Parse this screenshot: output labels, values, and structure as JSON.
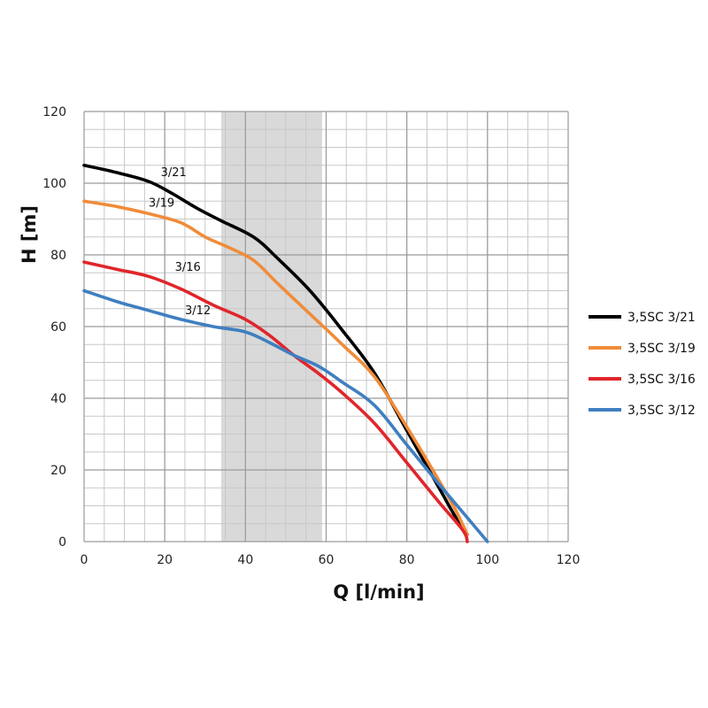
{
  "chart_data": {
    "type": "line",
    "xlabel": "Q [l/min]",
    "ylabel": "H [m]",
    "xlim": [
      0,
      120
    ],
    "ylim": [
      0,
      120
    ],
    "xticks": [
      0,
      20,
      40,
      60,
      80,
      100,
      120
    ],
    "yticks": [
      0,
      20,
      40,
      60,
      80,
      100,
      120
    ],
    "grid": true,
    "legend_position": "right",
    "shaded_band": [
      34,
      59
    ],
    "series": [
      {
        "name": "3,5SC 3/21",
        "curve_label": "3/21",
        "label_at": [
          19,
          102
        ],
        "color": "#000000",
        "x": [
          0,
          8,
          16,
          22,
          28,
          34,
          42,
          48,
          56,
          64,
          72,
          80,
          88,
          92,
          95
        ],
        "y": [
          105,
          103,
          100.5,
          97,
          93,
          89.5,
          85,
          79,
          70,
          59,
          47,
          31,
          15,
          7,
          2
        ]
      },
      {
        "name": "3,5SC 3/19",
        "curve_label": "3/19",
        "label_at": [
          16,
          93.5
        ],
        "color": "#f08c3a",
        "x": [
          0,
          8,
          16,
          24,
          30,
          36,
          42,
          48,
          56,
          64,
          72,
          80,
          88,
          92,
          95
        ],
        "y": [
          95,
          93.5,
          91.5,
          89,
          85,
          82,
          78.5,
          72,
          63.5,
          55,
          46,
          32,
          17,
          9,
          2
        ]
      },
      {
        "name": "3,5SC 3/16",
        "curve_label": "3/16",
        "label_at": [
          22.5,
          75.5
        ],
        "color": "#e0262b",
        "x": [
          0,
          8,
          16,
          24,
          32,
          40,
          46,
          52,
          58,
          64,
          72,
          80,
          88,
          94,
          95
        ],
        "y": [
          78,
          76,
          74,
          70.5,
          66,
          62,
          57.5,
          52,
          47,
          41.5,
          33,
          22,
          11,
          3,
          0
        ]
      },
      {
        "name": "3,5SC 3/12",
        "curve_label": "3/12",
        "label_at": [
          25,
          63.5
        ],
        "color": "#3f7fc0",
        "x": [
          0,
          8,
          16,
          24,
          32,
          40,
          46,
          52,
          58,
          64,
          72,
          80,
          88,
          94,
          100
        ],
        "y": [
          70,
          67,
          64.5,
          62,
          60,
          58.5,
          55.5,
          52,
          49,
          44.5,
          38,
          27,
          16,
          8,
          0
        ]
      }
    ]
  }
}
